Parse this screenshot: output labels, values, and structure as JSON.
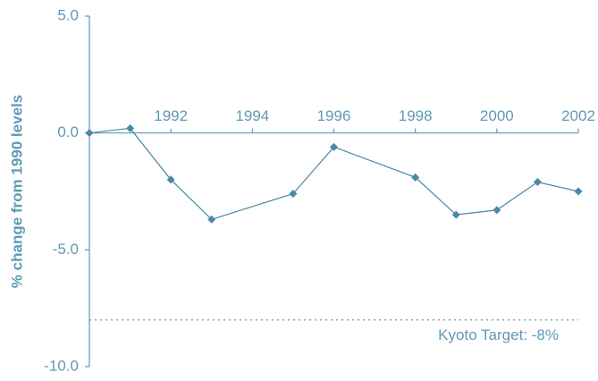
{
  "chart_data": {
    "type": "line",
    "y_label": "% change from  1990 levels",
    "x": [
      1990,
      1991,
      1992,
      1993,
      1995,
      1996,
      1998,
      1999,
      2000,
      2001,
      2002
    ],
    "values": [
      0,
      0.2,
      -2.0,
      -3.7,
      -2.6,
      -0.6,
      -1.9,
      -3.5,
      -3.3,
      -2.1,
      -2.5
    ],
    "color": "#4a88a8",
    "xlim": [
      1990,
      2002
    ],
    "xticks": [
      1992,
      1994,
      1996,
      1998,
      2000,
      2002
    ],
    "ylim": [
      -10,
      5
    ],
    "yticks": [
      {
        "value": 5,
        "label": "5.0"
      },
      {
        "value": 0,
        "label": "0.0"
      },
      {
        "value": -5,
        "label": "-5.0"
      },
      {
        "value": -10,
        "label": "-10.0"
      }
    ],
    "target_line": {
      "value": -8,
      "label": "Kyoto Target: -8%"
    }
  }
}
